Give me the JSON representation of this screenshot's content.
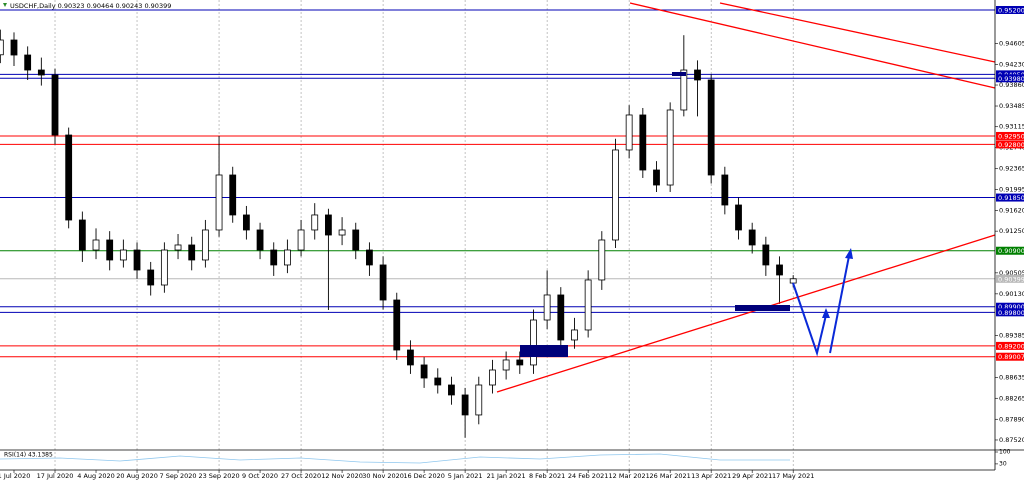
{
  "chart_data": {
    "type": "candlestick",
    "title": "USDCHF,Daily  0.90323 0.90464 0.90243 0.90399",
    "categories": [
      null,
      "1 Jul 2020",
      null,
      null,
      "17 Jul 2020",
      null,
      null,
      "4 Aug 2020",
      null,
      null,
      "20 Aug 2020",
      null,
      null,
      "7 Sep 2020",
      null,
      null,
      "23 Sep 2020",
      null,
      null,
      "9 Oct 2020",
      null,
      null,
      "27 Oct 2020",
      null,
      null,
      "12 Nov 2020",
      null,
      null,
      "30 Nov 2020",
      null,
      null,
      "16 Dec 2020",
      null,
      null,
      "5 Jan 2021",
      null,
      null,
      "21 Jan 2021",
      null,
      null,
      "8 Feb 2021",
      null,
      null,
      "24 Feb 2021",
      null,
      null,
      "12 Mar 2021",
      null,
      null,
      "26 Mar 2021",
      null,
      null,
      "13 Apr 2021",
      null,
      null,
      "29 Apr 2021",
      null,
      null,
      "17 May 2021"
    ],
    "open": [
      0.944,
      0.94664,
      0.94396,
      0.94128,
      0.94039,
      0.92967,
      0.91449,
      0.90913,
      0.91092,
      0.90735,
      0.90913,
      0.90556,
      0.90288,
      0.90913,
      0.91003,
      0.90735,
      0.91271,
      0.92253,
      0.91539,
      0.91271,
      0.90913,
      0.90646,
      0.90913,
      0.91271,
      0.91539,
      0.91181,
      0.91271,
      0.90913,
      0.90646,
      0.9002,
      0.89127,
      0.8886,
      0.88627,
      0.88502,
      0.88324,
      0.87967,
      0.88502,
      0.8877,
      0.88949,
      0.8886,
      0.89663,
      0.9011,
      0.89306,
      0.89485,
      0.90378,
      0.91092,
      0.927,
      0.93325,
      0.92342,
      0.92074,
      0.93414,
      0.94128,
      0.9395,
      0.92253,
      0.91717,
      0.91271,
      0.91003,
      0.90646,
      0.90323
    ],
    "high": [
      0.9485,
      0.948,
      0.9455,
      0.9435,
      0.9415,
      0.931,
      0.916,
      0.913,
      0.9125,
      0.911,
      0.9105,
      0.907,
      0.9105,
      0.912,
      0.9115,
      0.9145,
      0.9295,
      0.924,
      0.917,
      0.914,
      0.9105,
      0.911,
      0.9145,
      0.9175,
      0.9165,
      0.915,
      0.914,
      0.9105,
      0.908,
      0.9015,
      0.893,
      0.89,
      0.888,
      0.8865,
      0.8845,
      0.8865,
      0.8895,
      0.891,
      0.891,
      0.8985,
      0.9055,
      0.9025,
      0.897,
      0.9055,
      0.9125,
      0.929,
      0.935,
      0.9345,
      0.925,
      0.9355,
      0.9475,
      0.943,
      0.9405,
      0.924,
      0.9185,
      0.914,
      0.9115,
      0.908,
      0.90464
    ],
    "low": [
      0.9425,
      0.942,
      0.9395,
      0.9385,
      0.928,
      0.913,
      0.907,
      0.9075,
      0.9055,
      0.906,
      0.904,
      0.901,
      0.9015,
      0.9075,
      0.9055,
      0.906,
      0.9115,
      0.914,
      0.911,
      0.9075,
      0.9045,
      0.905,
      0.908,
      0.911,
      0.89842,
      0.91,
      0.9075,
      0.9045,
      0.8985,
      0.8895,
      0.887,
      0.8845,
      0.8835,
      0.8815,
      0.8756,
      0.878,
      0.8835,
      0.886,
      0.887,
      0.887,
      0.895,
      0.8915,
      0.8915,
      0.8935,
      0.902,
      0.9095,
      0.9255,
      0.922,
      0.9195,
      0.9195,
      0.933,
      0.933,
      0.921,
      0.9155,
      0.911,
      0.9085,
      0.9045,
      0.8995,
      0.90243
    ],
    "close": [
      0.94664,
      0.94396,
      0.94128,
      0.94039,
      0.92967,
      0.91449,
      0.90913,
      0.91092,
      0.90735,
      0.90913,
      0.90556,
      0.90288,
      0.90913,
      0.91003,
      0.90735,
      0.91271,
      0.92253,
      0.91539,
      0.91271,
      0.90913,
      0.90646,
      0.90913,
      0.91271,
      0.91539,
      0.91181,
      0.91271,
      0.90913,
      0.90646,
      0.9002,
      0.89127,
      0.8886,
      0.88627,
      0.88502,
      0.88324,
      0.87967,
      0.88502,
      0.8877,
      0.88949,
      0.8886,
      0.89663,
      0.9011,
      0.89306,
      0.89485,
      0.90378,
      0.91092,
      0.927,
      0.93325,
      0.92342,
      0.92074,
      0.93414,
      0.94128,
      0.9395,
      0.92253,
      0.91717,
      0.91271,
      0.91003,
      0.90646,
      0.90467,
      0.90399
    ],
    "ylim": [
      0.87341,
      0.95325
    ],
    "yticks": [
      {
        "value": 0.94605,
        "label": "0.94605"
      },
      {
        "value": 0.9423,
        "label": "0.94230"
      },
      {
        "value": 0.9386,
        "label": "0.93860"
      },
      {
        "value": 0.93485,
        "label": "0.93485"
      },
      {
        "value": 0.93115,
        "label": "0.93115"
      },
      {
        "value": 0.9274,
        "label": "0.92740"
      },
      {
        "value": 0.92365,
        "label": "0.92365"
      },
      {
        "value": 0.91995,
        "label": "0.91995"
      },
      {
        "value": 0.9162,
        "label": "0.91620"
      },
      {
        "value": 0.9125,
        "label": "0.91250"
      },
      {
        "value": 0.90505,
        "label": "0.90505"
      },
      {
        "value": 0.9013,
        "label": "0.90130"
      },
      {
        "value": 0.89385,
        "label": "0.89385"
      },
      {
        "value": 0.88635,
        "label": "0.88635"
      },
      {
        "value": 0.88265,
        "label": "0.88265"
      },
      {
        "value": 0.8789,
        "label": "0.87890"
      },
      {
        "value": 0.8752,
        "label": "0.87520"
      }
    ],
    "xgrid": true,
    "levels": [
      {
        "value": 0.952,
        "label": "0.95200",
        "color": "#0000b4"
      },
      {
        "value": 0.9405,
        "label": "0.94050",
        "color": "#0000b4"
      },
      {
        "value": 0.9398,
        "label": "0.93980",
        "color": "#0000b4"
      },
      {
        "value": 0.9295,
        "label": "0.92950",
        "color": "#ff0000"
      },
      {
        "value": 0.928,
        "label": "0.92800",
        "color": "#ff0000"
      },
      {
        "value": 0.9185,
        "label": "0.91850",
        "color": "#0000b4"
      },
      {
        "value": 0.909,
        "label": "0.90900",
        "color": "#008000"
      },
      {
        "value": 0.90399,
        "label": "0.90399",
        "color": "#b8b8b8"
      },
      {
        "value": 0.899,
        "label": "0.89900",
        "color": "#0000b4"
      },
      {
        "value": 0.898,
        "label": "0.89800",
        "color": "#0000b4"
      },
      {
        "value": 0.892,
        "label": "0.89200",
        "color": "#ff0000"
      },
      {
        "value": 0.89007,
        "label": "0.89007",
        "color": "#ff0000"
      }
    ],
    "indicator": {
      "label": "RSI(14) 43.1385",
      "ylim": [
        0,
        100
      ],
      "yticks": [
        100,
        30
      ]
    }
  }
}
